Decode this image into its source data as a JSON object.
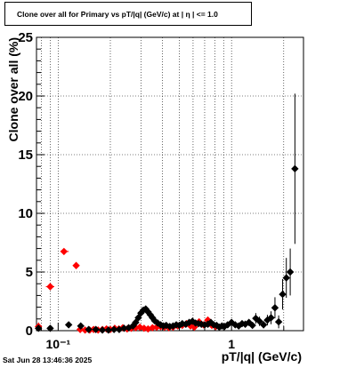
{
  "title": "Clone  over all for Primary vs pT/|q| (GeV/c) at |  η  | <= 1.0",
  "footer": "Sat Jun 28 13:46:36 2025",
  "chart_data": {
    "type": "scatter",
    "title": "Clone  over all for Primary vs pT/|q| (GeV/c) at |  η  | <= 1.0",
    "xlabel": "pT/|q| (GeV/c)",
    "ylabel": "Clone  over all (%)",
    "x_scale": "log",
    "xlim": [
      0.075,
      2.6
    ],
    "ylim": [
      0,
      25
    ],
    "x_tick_labels": [
      "10⁻¹",
      "1"
    ],
    "y_tick_labels": [
      "0",
      "5",
      "10",
      "15",
      "20",
      "25"
    ],
    "grid": true,
    "series": [
      {
        "color": "#ff0000",
        "marker": "diamond",
        "points": [
          {
            "x": 0.077,
            "y": 0.35,
            "xerr": [
              0.075,
              0.08
            ],
            "yerr": 0.35
          },
          {
            "x": 0.09,
            "y": 3.75,
            "xerr": [
              0.085,
              0.095
            ]
          },
          {
            "x": 0.108,
            "y": 6.75,
            "xerr": [
              0.103,
              0.115
            ]
          },
          {
            "x": 0.127,
            "y": 5.55,
            "xerr": [
              0.122,
              0.132
            ]
          },
          {
            "x": 0.134,
            "y": 0.1
          },
          {
            "x": 0.143,
            "y": 0.05
          },
          {
            "x": 0.152,
            "y": 0.05
          },
          {
            "x": 0.16,
            "y": 0.1
          },
          {
            "x": 0.17,
            "y": 0.05
          },
          {
            "x": 0.18,
            "y": 0.1
          },
          {
            "x": 0.19,
            "y": 0.15
          },
          {
            "x": 0.2,
            "y": 0.1
          },
          {
            "x": 0.212,
            "y": 0.2
          },
          {
            "x": 0.224,
            "y": 0.15
          },
          {
            "x": 0.236,
            "y": 0.25
          },
          {
            "x": 0.25,
            "y": 0.15
          },
          {
            "x": 0.264,
            "y": 0.2
          },
          {
            "x": 0.28,
            "y": 0.25
          },
          {
            "x": 0.296,
            "y": 0.3
          },
          {
            "x": 0.313,
            "y": 0.2
          },
          {
            "x": 0.33,
            "y": 0.15
          },
          {
            "x": 0.35,
            "y": 0.25
          },
          {
            "x": 0.37,
            "y": 0.3
          },
          {
            "x": 0.39,
            "y": 0.35
          },
          {
            "x": 0.41,
            "y": 0.3
          },
          {
            "x": 0.435,
            "y": 0.25
          },
          {
            "x": 0.46,
            "y": 0.3
          },
          {
            "x": 0.49,
            "y": 0.4
          },
          {
            "x": 0.52,
            "y": 0.45
          },
          {
            "x": 0.55,
            "y": 0.6
          },
          {
            "x": 0.58,
            "y": 0.4
          },
          {
            "x": 0.61,
            "y": 0.3
          },
          {
            "x": 0.65,
            "y": 0.75
          },
          {
            "x": 0.69,
            "y": 0.5
          },
          {
            "x": 0.73,
            "y": 0.9
          },
          {
            "x": 0.77,
            "y": 0.45
          },
          {
            "x": 0.81,
            "y": 0.35
          }
        ]
      },
      {
        "color": "#000000",
        "marker": "diamond",
        "points": [
          {
            "x": 0.077,
            "y": 0.2
          },
          {
            "x": 0.09,
            "y": 0.2
          },
          {
            "x": 0.115,
            "y": 0.5
          },
          {
            "x": 0.135,
            "y": 0.4
          },
          {
            "x": 0.15,
            "y": 0.1
          },
          {
            "x": 0.165,
            "y": 0.1
          },
          {
            "x": 0.18,
            "y": 0.05
          },
          {
            "x": 0.195,
            "y": 0.05
          },
          {
            "x": 0.21,
            "y": 0.1
          },
          {
            "x": 0.225,
            "y": 0.1
          },
          {
            "x": 0.24,
            "y": 0.2
          },
          {
            "x": 0.255,
            "y": 0.25
          },
          {
            "x": 0.27,
            "y": 0.4
          },
          {
            "x": 0.28,
            "y": 0.7
          },
          {
            "x": 0.29,
            "y": 1.1
          },
          {
            "x": 0.3,
            "y": 1.5
          },
          {
            "x": 0.31,
            "y": 1.75
          },
          {
            "x": 0.32,
            "y": 1.85
          },
          {
            "x": 0.33,
            "y": 1.6
          },
          {
            "x": 0.34,
            "y": 1.35
          },
          {
            "x": 0.35,
            "y": 1.1
          },
          {
            "x": 0.36,
            "y": 0.85
          },
          {
            "x": 0.375,
            "y": 0.65
          },
          {
            "x": 0.39,
            "y": 0.5
          },
          {
            "x": 0.405,
            "y": 0.4
          },
          {
            "x": 0.42,
            "y": 0.45
          },
          {
            "x": 0.44,
            "y": 0.35
          },
          {
            "x": 0.46,
            "y": 0.4
          },
          {
            "x": 0.48,
            "y": 0.5
          },
          {
            "x": 0.5,
            "y": 0.45
          },
          {
            "x": 0.52,
            "y": 0.6
          },
          {
            "x": 0.545,
            "y": 0.55
          },
          {
            "x": 0.57,
            "y": 0.7
          },
          {
            "x": 0.595,
            "y": 0.8
          },
          {
            "x": 0.62,
            "y": 0.65
          },
          {
            "x": 0.645,
            "y": 0.6
          },
          {
            "x": 0.67,
            "y": 0.55
          },
          {
            "x": 0.7,
            "y": 0.5
          },
          {
            "x": 0.73,
            "y": 0.55
          },
          {
            "x": 0.76,
            "y": 0.7
          },
          {
            "x": 0.79,
            "y": 0.5
          },
          {
            "x": 0.82,
            "y": 0.45
          },
          {
            "x": 0.85,
            "y": 0.3
          },
          {
            "x": 0.88,
            "y": 0.4
          },
          {
            "x": 0.91,
            "y": 0.35
          },
          {
            "x": 0.95,
            "y": 0.5
          },
          {
            "x": 1.0,
            "y": 0.7
          },
          {
            "x": 1.05,
            "y": 0.5
          },
          {
            "x": 1.1,
            "y": 0.4
          },
          {
            "x": 1.15,
            "y": 0.6
          },
          {
            "x": 1.2,
            "y": 0.55
          },
          {
            "x": 1.26,
            "y": 0.7
          },
          {
            "x": 1.32,
            "y": 0.45
          },
          {
            "x": 1.38,
            "y": 1.05,
            "yerr": 0.45
          },
          {
            "x": 1.45,
            "y": 0.8,
            "yerr": 0.4
          },
          {
            "x": 1.53,
            "y": 0.5,
            "yerr": 0.3
          },
          {
            "x": 1.61,
            "y": 0.9,
            "yerr": 0.45
          },
          {
            "x": 1.69,
            "y": 1.1,
            "yerr": 0.55
          },
          {
            "x": 1.78,
            "y": 1.95,
            "yerr": 0.9
          },
          {
            "x": 1.87,
            "y": 0.75,
            "yerr": 0.55
          },
          {
            "x": 1.97,
            "y": 3.1,
            "yerr": 1.3
          },
          {
            "x": 2.07,
            "y": 4.5,
            "yerr": 1.7
          },
          {
            "x": 2.18,
            "y": 5.0,
            "yerr": 2.0
          },
          {
            "x": 2.32,
            "y": 13.8,
            "yerr": 6.4
          }
        ]
      }
    ]
  }
}
